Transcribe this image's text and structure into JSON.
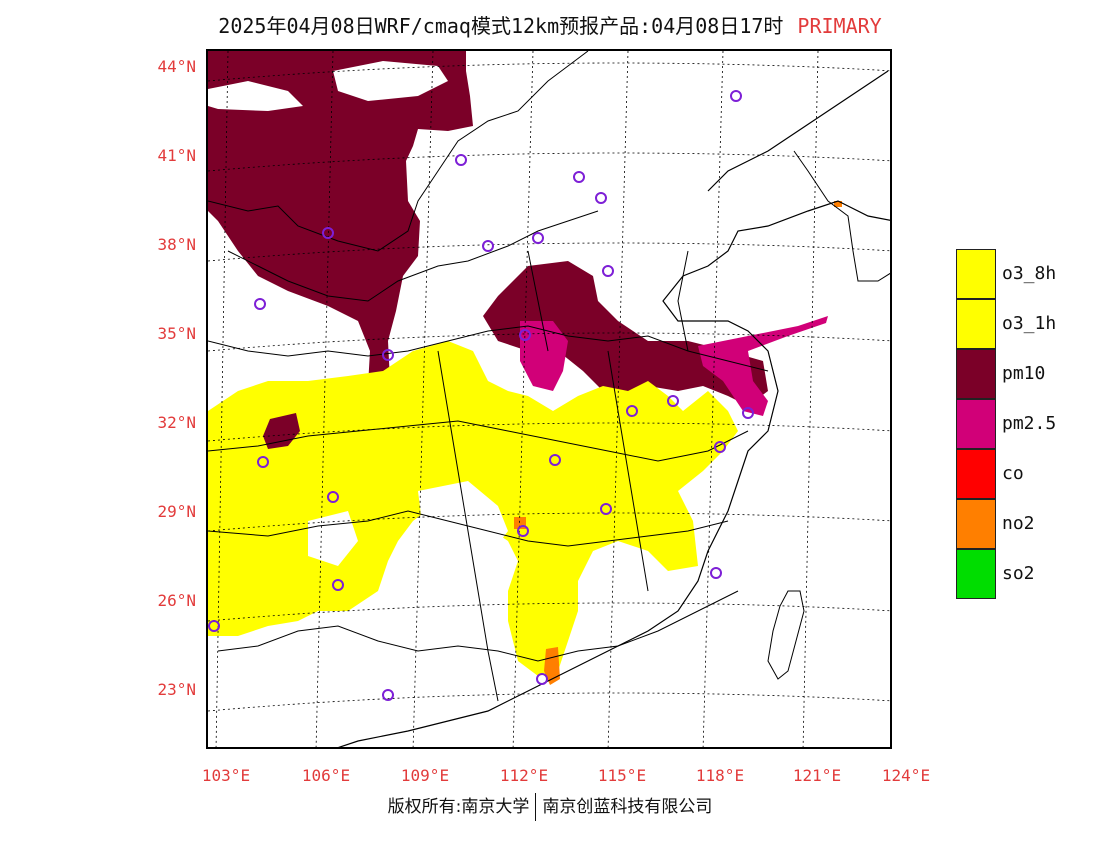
{
  "title": {
    "text": "2025年04月08日WRF/cmaq模式12km预报产品:04月08日17时",
    "tag": "PRIMARY"
  },
  "lat_labels": [
    "44°N",
    "41°N",
    "38°N",
    "35°N",
    "32°N",
    "29°N",
    "26°N",
    "23°N"
  ],
  "lon_labels": [
    "103°E",
    "106°E",
    "109°E",
    "112°E",
    "115°E",
    "118°E",
    "121°E",
    "124°E"
  ],
  "legend": [
    {
      "label": "o3_8h",
      "color": "#ffff00"
    },
    {
      "label": "o3_1h",
      "color": "#ffff00"
    },
    {
      "label": "pm10",
      "color": "#7b0028"
    },
    {
      "label": "pm2.5",
      "color": "#d10078"
    },
    {
      "label": "co",
      "color": "#ff0000"
    },
    {
      "label": "no2",
      "color": "#ff7f00"
    },
    {
      "label": "so2",
      "color": "#00dd00"
    }
  ],
  "copyright": {
    "left": "版权所有:南京大学",
    "right": "南京创蓝科技有限公司"
  }
}
